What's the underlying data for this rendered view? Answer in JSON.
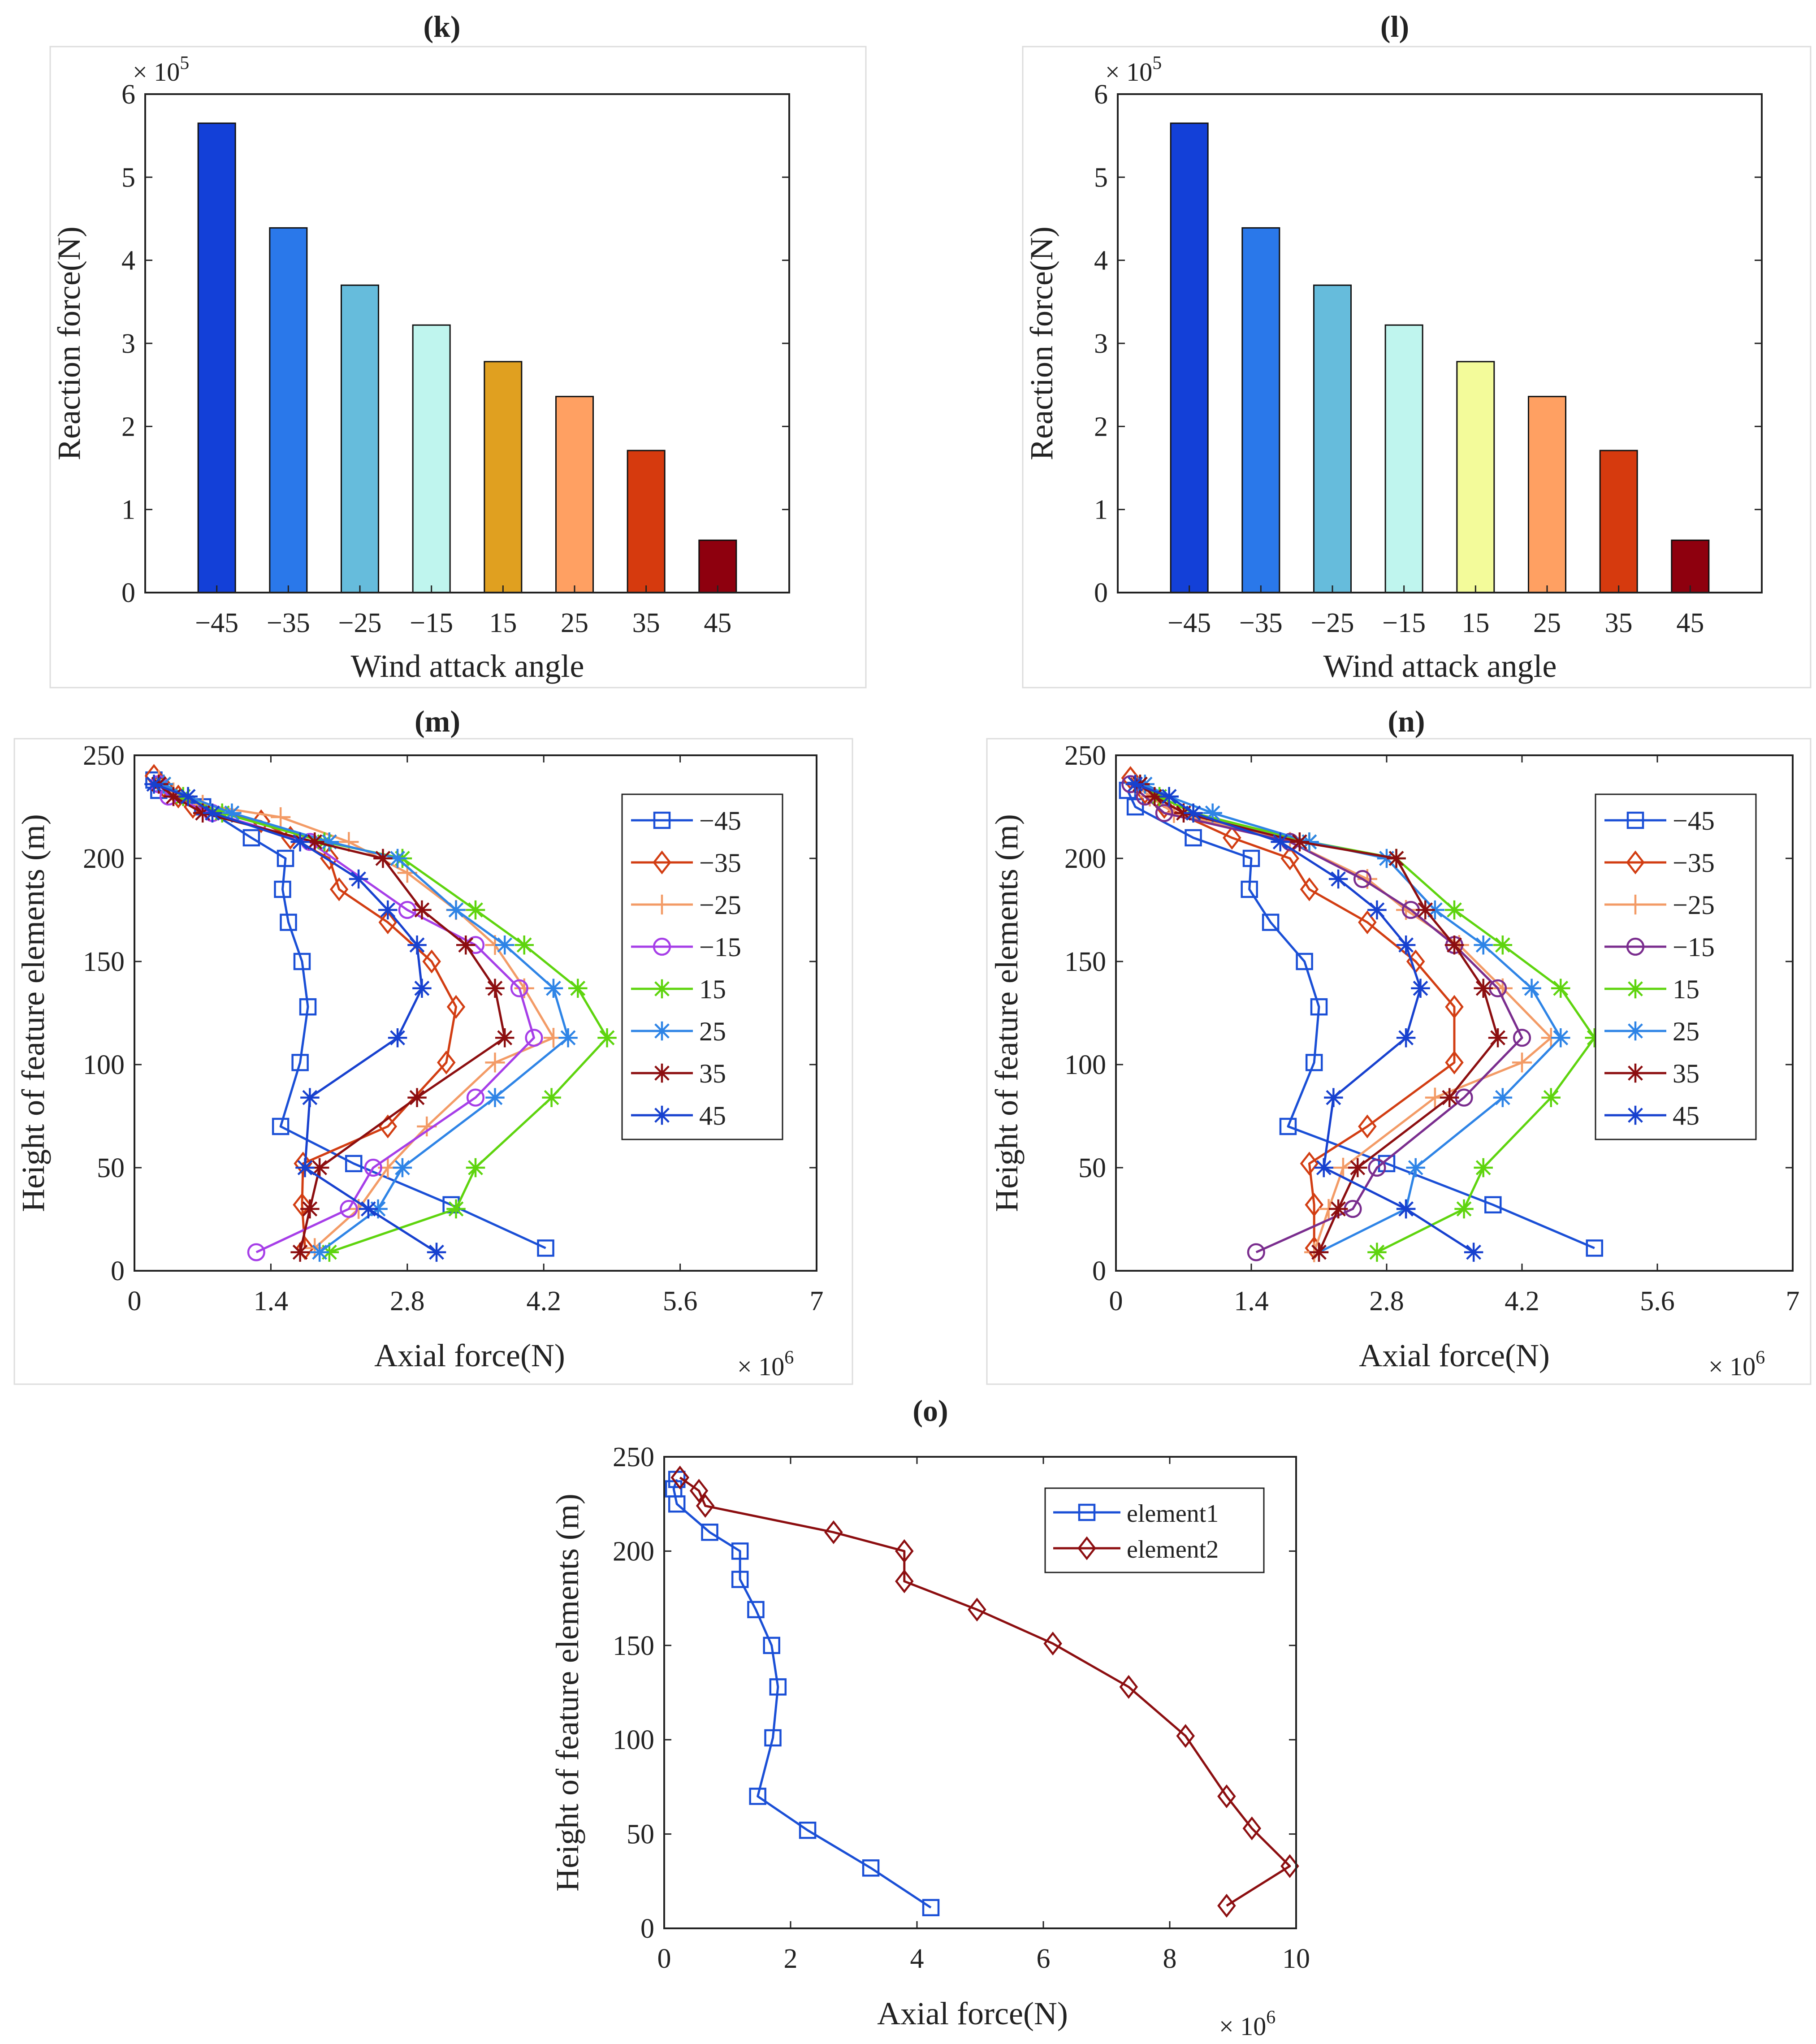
{
  "chart_data": [
    {
      "panel_label": "(k)",
      "type": "bar",
      "xlabel": "Wind attack angle",
      "ylabel": "Reaction force(N)",
      "y_multiplier": "× 10^5",
      "ylim": [
        0,
        6
      ],
      "yticks": [
        "0",
        "1",
        "2",
        "3",
        "4",
        "5",
        "6"
      ],
      "categories": [
        "−45",
        "−35",
        "−25",
        "−15",
        "15",
        "25",
        "35",
        "45"
      ],
      "values": [
        5.65,
        4.39,
        3.7,
        3.22,
        2.78,
        2.36,
        1.71,
        0.63
      ],
      "bar_colors": [
        "#1340d8",
        "#2a78ea",
        "#66bcdc",
        "#bff5ee",
        "#e0a020",
        "#ffa062",
        "#d63a0e",
        "#8e000e"
      ]
    },
    {
      "panel_label": "(l)",
      "type": "bar",
      "xlabel": "Wind attack angle",
      "ylabel": "Reaction force(N)",
      "y_multiplier": "× 10^5",
      "ylim": [
        0,
        6
      ],
      "yticks": [
        "0",
        "1",
        "2",
        "3",
        "4",
        "5",
        "6"
      ],
      "categories": [
        "−45",
        "−35",
        "−25",
        "−15",
        "15",
        "25",
        "35",
        "45"
      ],
      "values": [
        5.65,
        4.39,
        3.7,
        3.22,
        2.78,
        2.36,
        1.71,
        0.63
      ],
      "bar_colors": [
        "#1340d8",
        "#2a78ea",
        "#66bcdc",
        "#bff5ee",
        "#f3fb9a",
        "#ffa062",
        "#d63a0e",
        "#8e000e"
      ]
    },
    {
      "panel_label": "(m)",
      "type": "line",
      "xlabel": "Axial force(N)",
      "ylabel": "Height of feature elements (m)",
      "x_multiplier": "× 10^6",
      "xlim": [
        0,
        7
      ],
      "ylim": [
        0,
        250
      ],
      "xticks": [
        "0",
        "1.4",
        "2.8",
        "4.2",
        "5.6",
        "7"
      ],
      "yticks": [
        "0",
        "50",
        "100",
        "150",
        "200",
        "250"
      ],
      "legend": "top-right",
      "series": [
        {
          "name": "−45",
          "marker": "square",
          "color": "#1a4fd6",
          "x": [
            4.22,
            3.25,
            2.25,
            1.5,
            1.7,
            1.78,
            1.72,
            1.58,
            1.52,
            1.55,
            1.2,
            0.7,
            0.25,
            0.2
          ],
          "y": [
            11,
            32,
            52,
            70,
            101,
            128,
            150,
            169,
            185,
            200,
            210,
            225,
            233,
            238
          ]
        },
        {
          "name": "−35",
          "marker": "diamond",
          "color": "#d23d12",
          "x": [
            1.75,
            1.72,
            1.73,
            2.6,
            3.2,
            3.3,
            3.05,
            2.6,
            2.1,
            2.0,
            1.6,
            1.3,
            0.6,
            0.45,
            0.3,
            0.2
          ],
          "y": [
            11,
            32,
            52,
            70,
            101,
            128,
            150,
            169,
            185,
            200,
            210,
            218,
            225,
            230,
            235,
            240
          ]
        },
        {
          "name": "−25",
          "marker": "plus",
          "color": "#f39b66",
          "x": [
            1.85,
            2.3,
            2.6,
            3.0,
            3.7,
            4.3,
            4.0,
            3.7,
            3.3,
            2.8,
            2.2,
            1.5,
            0.7,
            0.4,
            0.25
          ],
          "y": [
            11,
            30,
            50,
            70,
            101,
            113,
            137,
            158,
            175,
            193,
            208,
            220,
            226,
            232,
            238
          ]
        },
        {
          "name": "−15",
          "marker": "circle",
          "color": "#a63ee8",
          "x": [
            1.25,
            2.2,
            2.45,
            3.5,
            4.1,
            3.95,
            3.5,
            2.8,
            1.8,
            0.8,
            0.35,
            0.25
          ],
          "y": [
            9,
            30,
            50,
            84,
            113,
            137,
            158,
            175,
            208,
            222,
            230,
            236
          ]
        },
        {
          "name": "15",
          "marker": "star",
          "color": "#5ed40e",
          "x": [
            2.0,
            3.3,
            3.5,
            4.28,
            4.85,
            4.55,
            4.0,
            3.5,
            2.75,
            1.95,
            0.9,
            0.5,
            0.3
          ],
          "y": [
            9,
            30,
            50,
            84,
            113,
            137,
            158,
            175,
            200,
            208,
            222,
            230,
            236
          ]
        },
        {
          "name": "25",
          "marker": "star",
          "color": "#2e84e6",
          "x": [
            1.9,
            2.5,
            2.75,
            3.7,
            4.45,
            4.3,
            3.8,
            3.3,
            2.7,
            2.0,
            1.0,
            0.55,
            0.3
          ],
          "y": [
            9,
            30,
            50,
            84,
            113,
            137,
            158,
            175,
            200,
            208,
            222,
            230,
            236
          ]
        },
        {
          "name": "35",
          "marker": "star",
          "color": "#8c0e10",
          "x": [
            1.7,
            1.8,
            1.9,
            2.9,
            3.8,
            3.7,
            3.4,
            2.95,
            2.55,
            1.85,
            0.7,
            0.4,
            0.25
          ],
          "y": [
            9,
            30,
            50,
            84,
            113,
            137,
            158,
            175,
            200,
            208,
            222,
            230,
            236
          ]
        },
        {
          "name": "45",
          "marker": "star",
          "color": "#1741cf",
          "x": [
            3.1,
            2.4,
            1.75,
            1.8,
            2.7,
            2.95,
            2.9,
            2.6,
            2.3,
            1.7,
            0.8,
            0.55,
            0.2
          ],
          "y": [
            9,
            30,
            50,
            84,
            113,
            137,
            158,
            175,
            190,
            208,
            222,
            230,
            236
          ]
        }
      ]
    },
    {
      "panel_label": "(n)",
      "type": "line",
      "xlabel": "Axial force(N)",
      "ylabel": "Height of feature elements (m)",
      "x_multiplier": "× 10^6",
      "xlim": [
        0,
        7
      ],
      "ylim": [
        0,
        250
      ],
      "xticks": [
        "0",
        "1.4",
        "2.8",
        "4.2",
        "5.6",
        "7"
      ],
      "yticks": [
        "0",
        "50",
        "100",
        "150",
        "200",
        "250"
      ],
      "legend": "top-right",
      "series": [
        {
          "name": "−45",
          "marker": "square",
          "color": "#1a4fd6",
          "x": [
            4.95,
            3.9,
            2.8,
            1.78,
            2.05,
            2.1,
            1.95,
            1.6,
            1.38,
            1.4,
            0.8,
            0.2,
            0.12
          ],
          "y": [
            11,
            32,
            52,
            70,
            101,
            128,
            150,
            169,
            185,
            200,
            210,
            225,
            233
          ]
        },
        {
          "name": "−35",
          "marker": "diamond",
          "color": "#d23d12",
          "x": [
            2.05,
            2.05,
            2.0,
            2.6,
            3.5,
            3.5,
            3.1,
            2.6,
            2.0,
            1.8,
            1.2,
            0.5,
            0.3,
            0.15
          ],
          "y": [
            11,
            32,
            52,
            70,
            101,
            128,
            150,
            169,
            185,
            200,
            210,
            225,
            232,
            239
          ]
        },
        {
          "name": "−25",
          "marker": "plus",
          "color": "#f39b66",
          "x": [
            2.05,
            2.2,
            2.35,
            3.3,
            4.2,
            4.5,
            4.0,
            3.55,
            3.0,
            2.6,
            1.8,
            0.6,
            0.35,
            0.2
          ],
          "y": [
            9,
            30,
            50,
            84,
            101,
            113,
            137,
            158,
            175,
            190,
            208,
            222,
            230,
            236
          ]
        },
        {
          "name": "−15",
          "marker": "circle",
          "color": "#7a2d8e",
          "x": [
            1.45,
            2.45,
            2.7,
            3.6,
            4.2,
            3.95,
            3.5,
            3.05,
            2.55,
            1.8,
            0.5,
            0.3,
            0.15
          ],
          "y": [
            9,
            30,
            50,
            84,
            113,
            137,
            158,
            175,
            190,
            208,
            222,
            230,
            236
          ]
        },
        {
          "name": "15",
          "marker": "star",
          "color": "#5ed40e",
          "x": [
            2.7,
            3.6,
            3.8,
            4.5,
            4.95,
            4.6,
            4.0,
            3.5,
            2.9,
            2.0,
            0.8,
            0.45,
            0.25
          ],
          "y": [
            9,
            30,
            50,
            84,
            113,
            137,
            158,
            175,
            200,
            208,
            222,
            230,
            236
          ]
        },
        {
          "name": "25",
          "marker": "star",
          "color": "#2e84e6",
          "x": [
            2.1,
            3.0,
            3.1,
            4.0,
            4.6,
            4.3,
            3.8,
            3.3,
            2.8,
            2.0,
            1.0,
            0.55,
            0.3
          ],
          "y": [
            9,
            30,
            50,
            84,
            113,
            137,
            158,
            175,
            200,
            208,
            222,
            230,
            236
          ]
        },
        {
          "name": "35",
          "marker": "star",
          "color": "#8c0e10",
          "x": [
            2.1,
            2.3,
            2.5,
            3.45,
            3.95,
            3.8,
            3.5,
            3.2,
            2.9,
            1.9,
            0.7,
            0.4,
            0.25
          ],
          "y": [
            9,
            30,
            50,
            84,
            113,
            137,
            158,
            175,
            200,
            208,
            222,
            230,
            236
          ]
        },
        {
          "name": "45",
          "marker": "star",
          "color": "#1741cf",
          "x": [
            3.7,
            3.0,
            2.15,
            2.25,
            3.0,
            3.15,
            3.0,
            2.7,
            2.3,
            1.7,
            0.8,
            0.55,
            0.2
          ],
          "y": [
            9,
            30,
            50,
            84,
            113,
            137,
            158,
            175,
            190,
            208,
            222,
            230,
            236
          ]
        }
      ]
    },
    {
      "panel_label": "(o)",
      "type": "line",
      "xlabel": "Axial force(N)",
      "ylabel": "Height of feature elements (m)",
      "x_multiplier": "× 10^6",
      "xlim": [
        0,
        10
      ],
      "ylim": [
        0,
        250
      ],
      "xticks": [
        "0",
        "2",
        "4",
        "6",
        "8",
        "10"
      ],
      "yticks": [
        "0",
        "50",
        "100",
        "150",
        "200",
        "250"
      ],
      "legend": "top-right",
      "series": [
        {
          "name": "element1",
          "marker": "square",
          "color": "#1a4fd6",
          "x": [
            4.22,
            3.27,
            2.27,
            1.48,
            1.72,
            1.8,
            1.7,
            1.45,
            1.2,
            1.2,
            0.72,
            0.2,
            0.15,
            0.2
          ],
          "y": [
            11,
            32,
            52,
            70,
            101,
            128,
            150,
            169,
            185,
            200,
            210,
            225,
            233,
            238
          ]
        },
        {
          "name": "element2",
          "marker": "diamond",
          "color": "#8c0e10",
          "x": [
            8.9,
            9.9,
            9.3,
            8.9,
            8.25,
            7.35,
            6.15,
            4.95,
            3.8,
            3.8,
            2.68,
            0.65,
            0.55,
            0.25
          ],
          "y": [
            12,
            33,
            53,
            70,
            102,
            128,
            151,
            169,
            184,
            200,
            210,
            224,
            232,
            239
          ]
        }
      ]
    }
  ]
}
